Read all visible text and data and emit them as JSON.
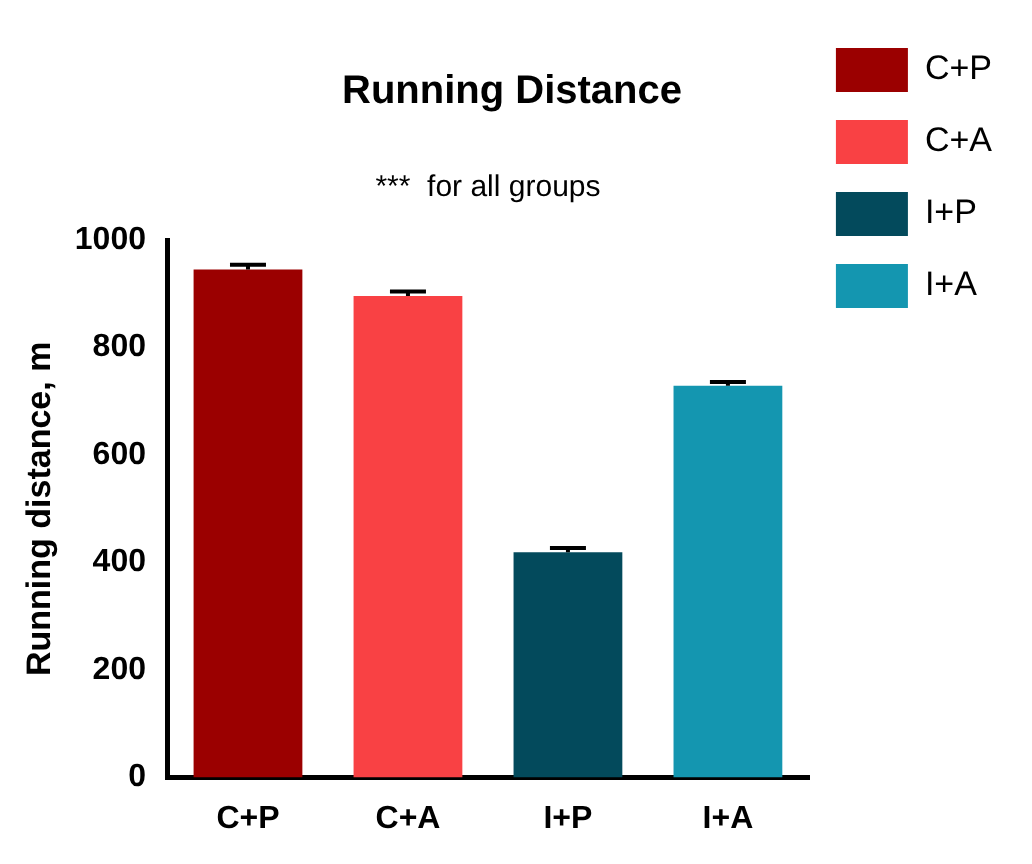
{
  "chart_data": {
    "type": "bar",
    "title": "Running Distance",
    "ylabel": "Running distance, m",
    "categories": [
      "C+P",
      "C+A",
      "I+P",
      "I+A"
    ],
    "series": [
      {
        "name": "C+P",
        "color": "#9b0000",
        "values": [
          945,
          null,
          null,
          null
        ],
        "errors": [
          [
            945,
            954
          ],
          null,
          null,
          null
        ]
      },
      {
        "name": "C+A",
        "color": "#f94144",
        "values": [
          null,
          896,
          null,
          null
        ],
        "errors": [
          null,
          [
            896,
            904
          ],
          null,
          null
        ]
      },
      {
        "name": "I+P",
        "color": "#034a5c",
        "values": [
          null,
          null,
          419,
          null
        ],
        "errors": [
          null,
          null,
          [
            419,
            427
          ],
          null
        ]
      },
      {
        "name": "I+A",
        "color": "#1496b0",
        "values": [
          null,
          null,
          null,
          729
        ],
        "errors": [
          null,
          null,
          null,
          [
            729,
            736
          ]
        ]
      }
    ],
    "ylim": [
      0,
      1000
    ],
    "yticks": [
      0,
      200,
      400,
      600,
      800,
      1000
    ],
    "annotations": [
      "***  for all groups"
    ],
    "legend": "right",
    "grid": false
  }
}
